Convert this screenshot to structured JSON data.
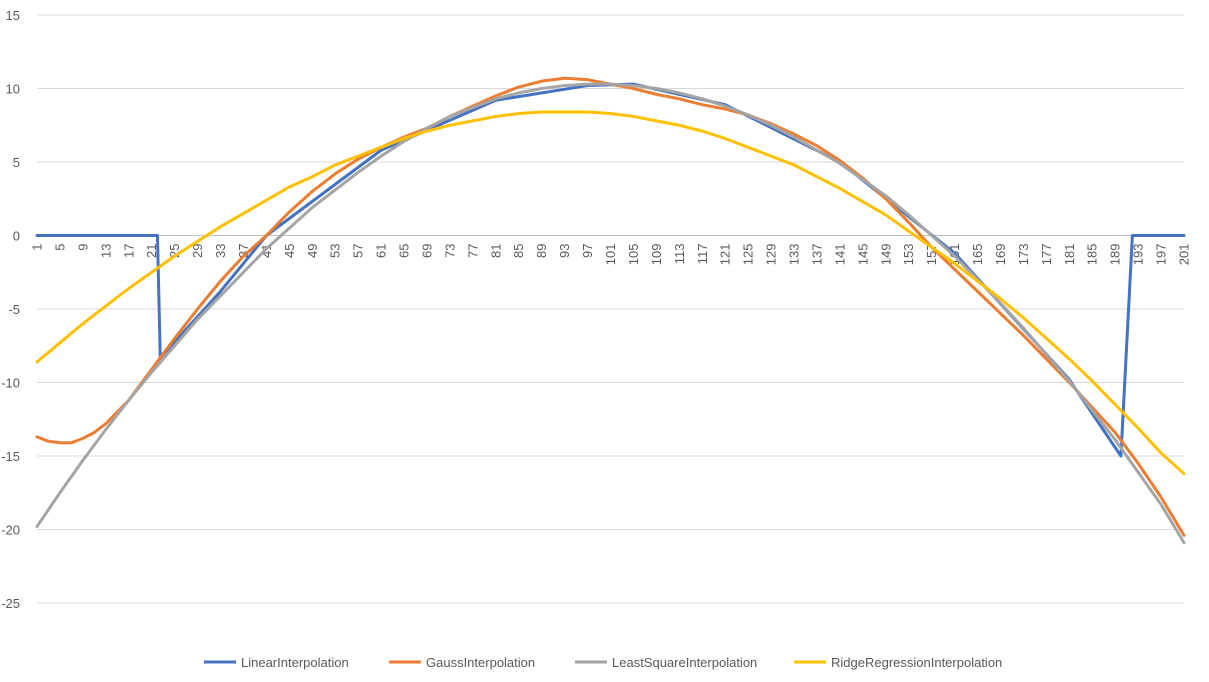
{
  "chart_data": {
    "type": "line",
    "title": "",
    "xlabel": "",
    "ylabel": "",
    "ylim": [
      -25,
      15
    ],
    "yticks": [
      15,
      10,
      5,
      0,
      -5,
      -10,
      -15,
      -20,
      -25
    ],
    "x": {
      "start": 1,
      "end": 201,
      "tick_step": 4
    },
    "grid": "horizontal",
    "legend_position": "bottom",
    "series": [
      {
        "name": "LinearInterpolation",
        "color": "#4472C4",
        "points": [
          [
            1,
            0
          ],
          [
            22,
            0
          ],
          [
            22.5,
            -8.4
          ],
          [
            23,
            -8.1
          ],
          [
            33,
            -3.8
          ],
          [
            41,
            0
          ],
          [
            61,
            5.8
          ],
          [
            81,
            9.2
          ],
          [
            97,
            10.2
          ],
          [
            105,
            10.3
          ],
          [
            121,
            8.9
          ],
          [
            141,
            5.0
          ],
          [
            161,
            -1.2
          ],
          [
            181,
            -9.8
          ],
          [
            190,
            -15.0
          ],
          [
            192,
            0
          ],
          [
            201,
            0
          ]
        ]
      },
      {
        "name": "GaussInterpolation",
        "color": "#ED7D31",
        "points": [
          [
            1,
            -13.7
          ],
          [
            3,
            -14.0
          ],
          [
            5,
            -14.1
          ],
          [
            7,
            -14.1
          ],
          [
            9,
            -13.8
          ],
          [
            11,
            -13.4
          ],
          [
            13,
            -12.8
          ],
          [
            17,
            -11.2
          ],
          [
            21,
            -9.1
          ],
          [
            25,
            -7.0
          ],
          [
            29,
            -5.0
          ],
          [
            33,
            -3.1
          ],
          [
            37,
            -1.4
          ],
          [
            41,
            0.0
          ],
          [
            45,
            1.6
          ],
          [
            49,
            3.0
          ],
          [
            53,
            4.2
          ],
          [
            57,
            5.2
          ],
          [
            61,
            6.0
          ],
          [
            65,
            6.7
          ],
          [
            69,
            7.3
          ],
          [
            73,
            8.1
          ],
          [
            77,
            8.8
          ],
          [
            81,
            9.5
          ],
          [
            85,
            10.1
          ],
          [
            89,
            10.5
          ],
          [
            93,
            10.7
          ],
          [
            97,
            10.6
          ],
          [
            101,
            10.3
          ],
          [
            105,
            10.0
          ],
          [
            109,
            9.6
          ],
          [
            113,
            9.3
          ],
          [
            117,
            8.9
          ],
          [
            121,
            8.6
          ],
          [
            125,
            8.2
          ],
          [
            129,
            7.6
          ],
          [
            133,
            6.9
          ],
          [
            137,
            6.1
          ],
          [
            141,
            5.1
          ],
          [
            145,
            3.9
          ],
          [
            149,
            2.5
          ],
          [
            153,
            0.9
          ],
          [
            157,
            -0.8
          ],
          [
            161,
            -2.3
          ],
          [
            165,
            -3.8
          ],
          [
            169,
            -5.3
          ],
          [
            173,
            -6.8
          ],
          [
            177,
            -8.4
          ],
          [
            181,
            -10.0
          ],
          [
            185,
            -11.7
          ],
          [
            189,
            -13.4
          ],
          [
            193,
            -15.5
          ],
          [
            197,
            -17.8
          ],
          [
            201,
            -20.4
          ]
        ]
      },
      {
        "name": "LeastSquareInterpolation",
        "color": "#A5A5A5",
        "points": [
          [
            1,
            -19.8
          ],
          [
            5,
            -17.5
          ],
          [
            9,
            -15.3
          ],
          [
            13,
            -13.2
          ],
          [
            17,
            -11.2
          ],
          [
            21,
            -9.3
          ],
          [
            25,
            -7.5
          ],
          [
            29,
            -5.7
          ],
          [
            33,
            -4.1
          ],
          [
            37,
            -2.5
          ],
          [
            41,
            -0.9
          ],
          [
            45,
            0.5
          ],
          [
            49,
            1.9
          ],
          [
            53,
            3.1
          ],
          [
            57,
            4.3
          ],
          [
            61,
            5.4
          ],
          [
            65,
            6.4
          ],
          [
            69,
            7.3
          ],
          [
            73,
            8.1
          ],
          [
            77,
            8.7
          ],
          [
            81,
            9.3
          ],
          [
            85,
            9.7
          ],
          [
            89,
            10.0
          ],
          [
            93,
            10.2
          ],
          [
            97,
            10.3
          ],
          [
            101,
            10.3
          ],
          [
            105,
            10.2
          ],
          [
            109,
            10.0
          ],
          [
            113,
            9.7
          ],
          [
            117,
            9.3
          ],
          [
            121,
            8.8
          ],
          [
            125,
            8.2
          ],
          [
            129,
            7.5
          ],
          [
            133,
            6.7
          ],
          [
            137,
            5.8
          ],
          [
            141,
            4.9
          ],
          [
            145,
            3.8
          ],
          [
            149,
            2.7
          ],
          [
            153,
            1.4
          ],
          [
            157,
            0.0
          ],
          [
            161,
            -1.4
          ],
          [
            165,
            -3.0
          ],
          [
            169,
            -4.6
          ],
          [
            173,
            -6.3
          ],
          [
            177,
            -8.1
          ],
          [
            181,
            -9.9
          ],
          [
            185,
            -11.9
          ],
          [
            189,
            -13.9
          ],
          [
            193,
            -16.1
          ],
          [
            197,
            -18.3
          ],
          [
            201,
            -20.9
          ]
        ]
      },
      {
        "name": "RidgeRegressionInterpolation",
        "color": "#FFC000",
        "points": [
          [
            1,
            -8.6
          ],
          [
            5,
            -7.3
          ],
          [
            9,
            -6.0
          ],
          [
            13,
            -4.8
          ],
          [
            17,
            -3.6
          ],
          [
            21,
            -2.5
          ],
          [
            25,
            -1.4
          ],
          [
            29,
            -0.4
          ],
          [
            33,
            0.6
          ],
          [
            37,
            1.5
          ],
          [
            41,
            2.4
          ],
          [
            45,
            3.3
          ],
          [
            49,
            4.0
          ],
          [
            53,
            4.8
          ],
          [
            57,
            5.4
          ],
          [
            61,
            6.0
          ],
          [
            65,
            6.6
          ],
          [
            69,
            7.1
          ],
          [
            73,
            7.5
          ],
          [
            77,
            7.8
          ],
          [
            81,
            8.1
          ],
          [
            85,
            8.3
          ],
          [
            89,
            8.4
          ],
          [
            93,
            8.4
          ],
          [
            97,
            8.4
          ],
          [
            101,
            8.3
          ],
          [
            105,
            8.1
          ],
          [
            109,
            7.8
          ],
          [
            113,
            7.5
          ],
          [
            117,
            7.1
          ],
          [
            121,
            6.6
          ],
          [
            125,
            6.0
          ],
          [
            129,
            5.4
          ],
          [
            133,
            4.8
          ],
          [
            137,
            4.0
          ],
          [
            141,
            3.2
          ],
          [
            145,
            2.3
          ],
          [
            149,
            1.4
          ],
          [
            153,
            0.3
          ],
          [
            157,
            -0.8
          ],
          [
            161,
            -1.9
          ],
          [
            165,
            -3.1
          ],
          [
            169,
            -4.3
          ],
          [
            173,
            -5.6
          ],
          [
            177,
            -7.0
          ],
          [
            181,
            -8.4
          ],
          [
            185,
            -9.9
          ],
          [
            189,
            -11.5
          ],
          [
            193,
            -13.1
          ],
          [
            197,
            -14.8
          ],
          [
            201,
            -16.2
          ]
        ]
      }
    ]
  }
}
